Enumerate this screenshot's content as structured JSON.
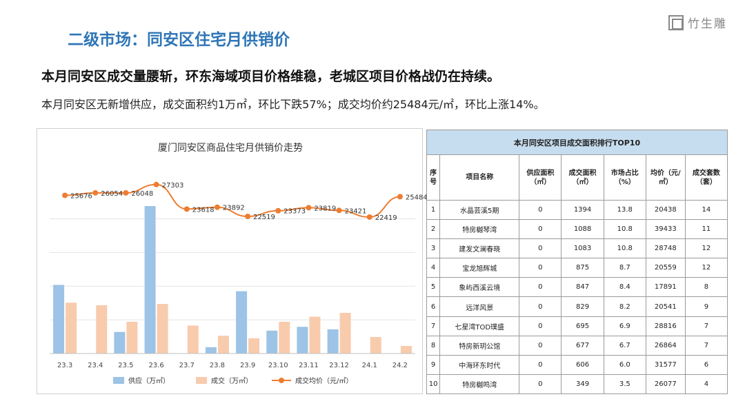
{
  "slide": {
    "title": "二级市场：同安区住宅月供销价",
    "headline": "本月同安区成交量腰斩，环东海域项目价格维稳，老城区项目价格战仍在持续。",
    "subline": "本月同安区无新增供应，成交面积约1万㎡，环比下跌57%；成交均价约25484元/㎡，环比上涨14%。",
    "logo_text": "竹生雕"
  },
  "chart_data": {
    "type": "bar",
    "title": "厦门同安区商品住宅月供销价走势",
    "categories": [
      "23.3",
      "23.4",
      "23.5",
      "23.6",
      "23.7",
      "23.8",
      "23.9",
      "23.10",
      "23.11",
      "23.12",
      "24.1",
      "24.2"
    ],
    "series": [
      {
        "name": "供应（万㎡）",
        "type": "bar",
        "color": "#9DC3E6",
        "values": [
          5.4,
          0,
          1.7,
          11.6,
          0,
          0.5,
          4.9,
          1.8,
          2.1,
          1.9,
          0,
          0
        ]
      },
      {
        "name": "成交（万㎡）",
        "type": "bar",
        "color": "#F8CBAD",
        "values": [
          4.0,
          3.8,
          2.5,
          3.9,
          2.2,
          1.4,
          1.2,
          2.5,
          2.9,
          3.2,
          1.3,
          0.6
        ]
      },
      {
        "name": "成交均价（元/㎡）",
        "type": "line",
        "color": "#ED7D31",
        "values": [
          25676,
          26054,
          26048,
          27303,
          23618,
          23892,
          22519,
          23373,
          23819,
          23421,
          22419,
          25484
        ]
      }
    ],
    "legend_position": "bottom"
  },
  "table": {
    "title": "本月同安区项目成交面积排行TOP10",
    "headers": [
      "序号",
      "项目名称",
      "供应面积（㎡）",
      "成交面积（㎡）",
      "市场占比（%）",
      "均价（元/㎡）",
      "成交套数（套）"
    ],
    "rows": [
      [
        "1",
        "水晶芸溪5期",
        "0",
        "1394",
        "13.8",
        "20438",
        "14"
      ],
      [
        "2",
        "特房樾琴湾",
        "0",
        "1088",
        "10.8",
        "39433",
        "11"
      ],
      [
        "3",
        "建发文澜春晓",
        "0",
        "1083",
        "10.8",
        "28748",
        "12"
      ],
      [
        "4",
        "宝龙旭辉城",
        "0",
        "875",
        "8.7",
        "20559",
        "12"
      ],
      [
        "5",
        "象屿西溪云境",
        "0",
        "847",
        "8.4",
        "17891",
        "8"
      ],
      [
        "6",
        "远洋风景",
        "0",
        "829",
        "8.2",
        "20541",
        "9"
      ],
      [
        "7",
        "七星湾TOD璞盛",
        "0",
        "695",
        "6.9",
        "28816",
        "7"
      ],
      [
        "8",
        "特房新玥公馆",
        "0",
        "677",
        "6.7",
        "26864",
        "7"
      ],
      [
        "9",
        "中海环东时代",
        "0",
        "606",
        "6.0",
        "31577",
        "6"
      ],
      [
        "10",
        "特房樾鸣湾",
        "0",
        "349",
        "3.5",
        "26077",
        "4"
      ]
    ]
  }
}
